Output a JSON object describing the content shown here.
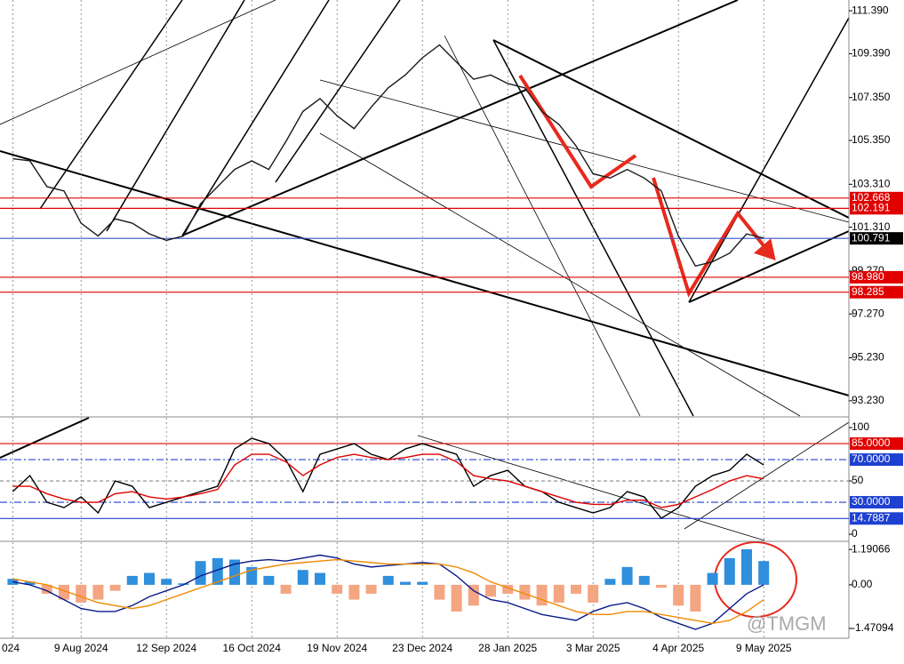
{
  "chart_data": [
    {
      "type": "line",
      "panel": "price",
      "categories": [
        "024",
        null,
        null,
        null,
        "9 Aug 2024",
        null,
        null,
        null,
        null,
        "12 Sep 2024",
        null,
        null,
        null,
        null,
        "16 Oct 2024",
        null,
        null,
        null,
        null,
        "19 Nov 2024",
        null,
        null,
        null,
        null,
        "23 Dec 2024",
        null,
        null,
        null,
        null,
        "28 Jan 2025",
        null,
        null,
        null,
        null,
        "3 Mar 2025",
        null,
        null,
        null,
        null,
        "4 Apr 2025",
        null,
        null,
        null,
        null,
        "9 May 2025"
      ],
      "series": [
        {
          "color": "#1a1a1a",
          "values": [
            104.5,
            104.4,
            103.2,
            103.0,
            101.5,
            100.9,
            101.7,
            101.5,
            101.0,
            100.7,
            100.9,
            102.4,
            103.2,
            104.0,
            104.4,
            104.0,
            105.3,
            106.7,
            107.3,
            106.5,
            105.9,
            106.9,
            107.8,
            108.4,
            109.2,
            109.8,
            109.0,
            108.2,
            108.4,
            108.0,
            107.8,
            106.7,
            106.1,
            105.1,
            103.8,
            103.6,
            104.0,
            103.6,
            103.0,
            100.9,
            99.5,
            99.7,
            100.1,
            101.0,
            100.8
          ]
        }
      ],
      "ylim": [
        92.52,
        111.89
      ],
      "yticks": [
        {
          "value": 111.39,
          "label": "111.390"
        },
        {
          "value": 109.39,
          "label": "109.390"
        },
        {
          "value": 107.35,
          "label": "107.350"
        },
        {
          "value": 105.35,
          "label": "105.350"
        },
        {
          "value": 103.31,
          "label": "103.310"
        },
        {
          "value": 101.31,
          "label": "101.310"
        },
        {
          "value": 99.27,
          "label": "99.270"
        },
        {
          "value": 97.27,
          "label": "97.270"
        },
        {
          "value": 95.23,
          "label": "95.230"
        },
        {
          "value": 93.23,
          "label": "93.230"
        }
      ],
      "levels": [
        {
          "value": 102.668,
          "label": "102.668",
          "color": "#e00000"
        },
        {
          "value": 102.191,
          "label": "102.191",
          "color": "#e00000"
        },
        {
          "value": 100.791,
          "label": "100.791",
          "color": "#000000",
          "line_color": "#3355cc"
        },
        {
          "value": 98.98,
          "label": "98.980",
          "color": "#e00000"
        },
        {
          "value": 98.285,
          "label": "98.285",
          "color": "#e00000"
        }
      ]
    },
    {
      "type": "line",
      "panel": "oscillator",
      "series": [
        {
          "color": "#000000",
          "values": [
            40,
            55,
            30,
            25,
            35,
            20,
            50,
            45,
            25,
            30,
            35,
            40,
            45,
            80,
            90,
            85,
            70,
            40,
            75,
            80,
            85,
            75,
            70,
            80,
            85,
            80,
            75,
            45,
            55,
            60,
            45,
            40,
            30,
            25,
            20,
            25,
            40,
            35,
            15,
            25,
            45,
            55,
            60,
            75,
            65
          ]
        },
        {
          "color": "#e00000",
          "values": [
            45,
            45,
            38,
            33,
            30,
            30,
            38,
            40,
            35,
            33,
            35,
            38,
            42,
            65,
            75,
            75,
            68,
            55,
            65,
            72,
            75,
            72,
            70,
            72,
            75,
            75,
            68,
            55,
            52,
            50,
            45,
            40,
            35,
            30,
            28,
            28,
            32,
            32,
            25,
            28,
            35,
            42,
            50,
            55,
            52
          ]
        }
      ],
      "ylim": [
        -5.8,
        109.2
      ],
      "yticks": [
        0,
        50,
        100
      ],
      "levels": [
        {
          "value": 85,
          "label": "85.0000",
          "color": "#e00000",
          "style": "solid"
        },
        {
          "value": 70,
          "label": "70.0000",
          "color": "#1e40d0",
          "style": "dashdot"
        },
        {
          "value": 50,
          "color": "#888888",
          "style": "dashed"
        },
        {
          "value": 30,
          "label": "30.0000",
          "color": "#1e40d0",
          "style": "dashdot"
        },
        {
          "value": 14.7887,
          "label": "14.7887",
          "color": "#1e40d0",
          "style": "solid"
        }
      ]
    },
    {
      "type": "macd",
      "panel": "macd",
      "histogram": [
        0.2,
        0.1,
        -0.3,
        -0.5,
        -0.6,
        -0.5,
        -0.2,
        0.3,
        0.4,
        0.2,
        0.05,
        0.8,
        0.9,
        0.85,
        0.6,
        0.3,
        -0.3,
        0.5,
        0.4,
        -0.3,
        -0.5,
        -0.3,
        0.3,
        0.1,
        0.1,
        -0.5,
        -0.9,
        -0.7,
        -0.4,
        -0.3,
        -0.5,
        -0.7,
        -0.6,
        -0.3,
        -0.6,
        0.2,
        0.6,
        0.3,
        -0.1,
        -0.7,
        -0.9,
        0.4,
        0.9,
        1.2,
        0.8
      ],
      "color_up": "#2f8fdc",
      "color_down": "#f4a582",
      "series": [
        {
          "color": "#0a1a8a",
          "values": [
            0.1,
            0,
            -0.2,
            -0.5,
            -0.8,
            -0.9,
            -0.9,
            -0.7,
            -0.4,
            -0.2,
            0,
            0.3,
            0.5,
            0.7,
            0.8,
            0.85,
            0.8,
            0.9,
            1.0,
            0.9,
            0.7,
            0.6,
            0.65,
            0.7,
            0.75,
            0.7,
            0.3,
            -0.2,
            -0.5,
            -0.6,
            -0.8,
            -1.0,
            -1.1,
            -1.2,
            -0.9,
            -0.7,
            -0.6,
            -0.8,
            -1.1,
            -1.3,
            -1.5,
            -1.3,
            -0.8,
            -0.3,
            0.0
          ]
        },
        {
          "color": "#f08a00",
          "values": [
            0.2,
            0.1,
            0,
            -0.2,
            -0.4,
            -0.6,
            -0.7,
            -0.8,
            -0.7,
            -0.5,
            -0.3,
            -0.1,
            0.1,
            0.3,
            0.5,
            0.6,
            0.7,
            0.75,
            0.8,
            0.85,
            0.8,
            0.75,
            0.7,
            0.7,
            0.7,
            0.7,
            0.6,
            0.4,
            0.1,
            -0.1,
            -0.3,
            -0.5,
            -0.7,
            -0.9,
            -1.0,
            -1.0,
            -0.9,
            -0.9,
            -1.0,
            -1.1,
            -1.2,
            -1.3,
            -1.2,
            -0.9,
            -0.5
          ]
        }
      ],
      "ylim": [
        -1.8,
        1.435
      ],
      "yticks": [
        1.19066,
        {
          "value": 0,
          "label": "0.00"
        },
        -1.47094
      ]
    }
  ],
  "watermark": "@TMGM"
}
